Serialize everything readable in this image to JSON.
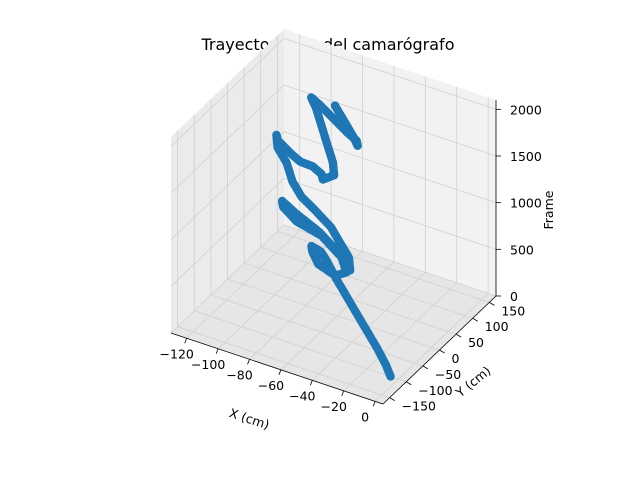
{
  "chart_data": {
    "type": "scatter",
    "projection": "3d",
    "title": "Trayectoria 3D del camarógrafo",
    "xlabel": "X (cm)",
    "ylabel": "Y (cm)",
    "zlabel": "Frame",
    "xlim": [
      -130,
      5
    ],
    "ylim": [
      -170,
      170
    ],
    "zlim": [
      0,
      2100
    ],
    "x_ticks": [
      -120,
      -100,
      -80,
      -60,
      -40,
      -20,
      0
    ],
    "x_tick_labels": [
      "−120",
      "−100",
      "−80",
      "−60",
      "−40",
      "−20",
      "0"
    ],
    "y_ticks": [
      -150,
      -100,
      -50,
      0,
      50,
      100,
      150
    ],
    "y_tick_labels": [
      "−150",
      "−100",
      "−50",
      "0",
      "50",
      "100",
      "150"
    ],
    "z_ticks": [
      0,
      500,
      1000,
      1500,
      2000
    ],
    "z_tick_labels": [
      "0",
      "500",
      "1000",
      "1500",
      "2000"
    ],
    "grid": true,
    "marker_color": "#1f77b4",
    "pane_colors": {
      "back": "#f2f2f2",
      "side": "#ebebeb",
      "floor": "#e6e6e6"
    },
    "series": [
      {
        "points": [
          [
            -5,
            -100,
            0
          ],
          [
            -10,
            -90,
            60
          ],
          [
            -20,
            -70,
            120
          ],
          [
            -35,
            -40,
            180
          ],
          [
            -50,
            -10,
            240
          ],
          [
            -65,
            20,
            300
          ],
          [
            -75,
            40,
            360
          ],
          [
            -80,
            45,
            420
          ],
          [
            -85,
            40,
            470
          ],
          [
            -80,
            20,
            500
          ],
          [
            -70,
            -10,
            530
          ],
          [
            -55,
            -30,
            560
          ],
          [
            -50,
            -20,
            590
          ],
          [
            -60,
            10,
            620
          ],
          [
            -80,
            40,
            650
          ],
          [
            -100,
            60,
            680
          ],
          [
            -110,
            70,
            710
          ],
          [
            -105,
            50,
            740
          ],
          [
            -90,
            20,
            770
          ],
          [
            -70,
            0,
            800
          ],
          [
            -55,
            -30,
            830
          ],
          [
            -40,
            -60,
            860
          ],
          [
            -35,
            -80,
            900
          ],
          [
            -40,
            -60,
            940
          ],
          [
            -50,
            -40,
            980
          ],
          [
            -60,
            -20,
            1020
          ],
          [
            -75,
            0,
            1060
          ],
          [
            -85,
            10,
            1100
          ],
          [
            -95,
            30,
            1140
          ],
          [
            -105,
            60,
            1180
          ],
          [
            -115,
            80,
            1220
          ],
          [
            -120,
            100,
            1260
          ],
          [
            -115,
            80,
            1300
          ],
          [
            -100,
            50,
            1340
          ],
          [
            -90,
            30,
            1380
          ],
          [
            -80,
            20,
            1420
          ],
          [
            -70,
            0,
            1460
          ],
          [
            -65,
            -20,
            1500
          ],
          [
            -60,
            -10,
            1540
          ],
          [
            -65,
            10,
            1580
          ],
          [
            -75,
            40,
            1620
          ],
          [
            -85,
            70,
            1660
          ],
          [
            -95,
            100,
            1700
          ],
          [
            -100,
            110,
            1740
          ],
          [
            -90,
            90,
            1780
          ],
          [
            -75,
            60,
            1820
          ],
          [
            -60,
            30,
            1860
          ],
          [
            -50,
            10,
            1900
          ],
          [
            -45,
            -10,
            1940
          ],
          [
            -50,
            0,
            1980
          ],
          [
            -60,
            20,
            2020
          ],
          [
            -70,
            40,
            2060
          ]
        ]
      }
    ]
  }
}
